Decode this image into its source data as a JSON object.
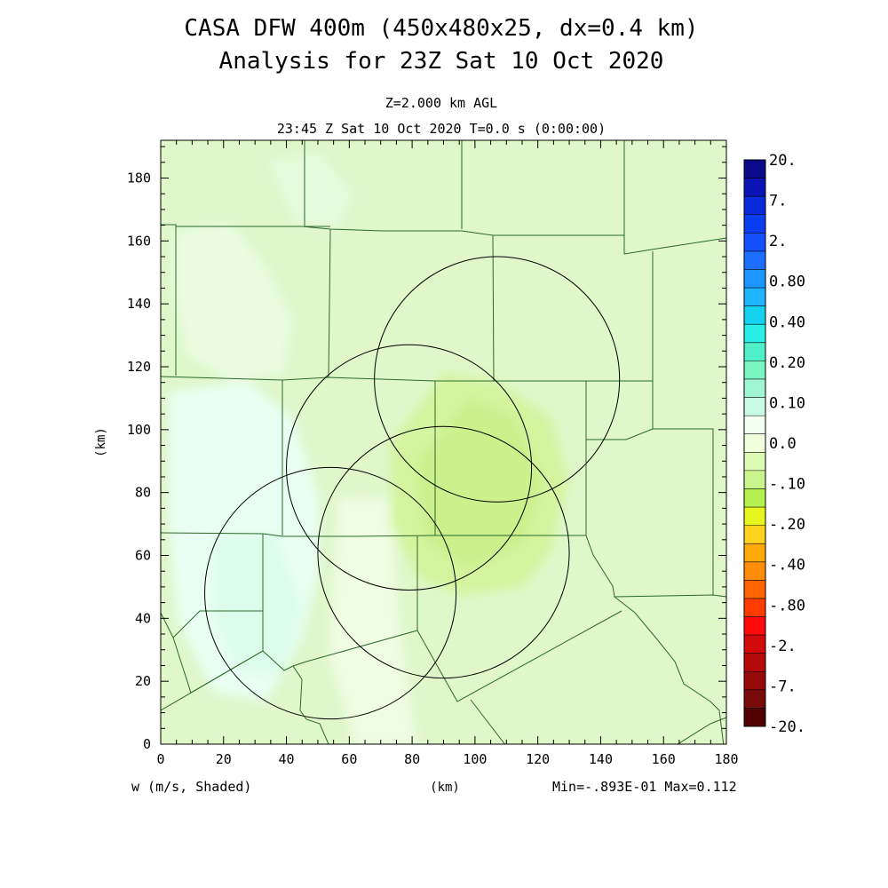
{
  "title_line1": "CASA DFW 400m (450x480x25, dx=0.4 km)",
  "title_line2": "Analysis for 23Z Sat 10 Oct 2020",
  "level_label": "Z=2.000 km AGL",
  "time_label": "23:45 Z Sat 10 Oct 2020   T=0.0 s (0:00:00)",
  "x_axis_label": "(km)",
  "y_axis_label": "(km)",
  "field_label": "w (m/s, Shaded)",
  "minmax_label": "Min=-.893E-01 Max=0.112",
  "x_ticks": [
    "0",
    "20",
    "40",
    "60",
    "80",
    "100",
    "120",
    "140",
    "160",
    "180"
  ],
  "y_ticks": [
    "0",
    "20",
    "40",
    "60",
    "80",
    "100",
    "120",
    "140",
    "160",
    "180"
  ],
  "x_range": [
    0,
    180
  ],
  "y_range": [
    0,
    192
  ],
  "colorbar": {
    "colors": [
      "#0a0a8a",
      "#0a14b4",
      "#0a28dc",
      "#0a3cf0",
      "#1450ff",
      "#1e6eff",
      "#1e96ff",
      "#1eb4ff",
      "#14d2f0",
      "#28f0e6",
      "#50f0c8",
      "#78f5c0",
      "#a0f5d2",
      "#c8fae6",
      "#f0fff0",
      "#f0ffdc",
      "#dcfab4",
      "#c8f58c",
      "#b4f050",
      "#e6f51e",
      "#ffd21e",
      "#ffaa0a",
      "#ff8c0a",
      "#ff6400",
      "#ff3c00",
      "#ff0a0a",
      "#d20a0a",
      "#b40a0a",
      "#960a0a",
      "#780a0a",
      "#500000"
    ],
    "labels": [
      "20.",
      "7.",
      "2.",
      "0.80",
      "0.40",
      "0.20",
      "0.10",
      "0.0",
      "-.10",
      "-.20",
      "-.40",
      "-.80",
      "-2.",
      "-7.",
      "-20."
    ]
  },
  "radars": [
    {
      "center_km": [
        107,
        116
      ],
      "radius_km": 39
    },
    {
      "center_km": [
        79,
        88
      ],
      "radius_km": 39
    },
    {
      "center_km": [
        90,
        61
      ],
      "radius_km": 40
    },
    {
      "center_km": [
        54,
        48
      ],
      "radius_km": 40
    }
  ]
}
